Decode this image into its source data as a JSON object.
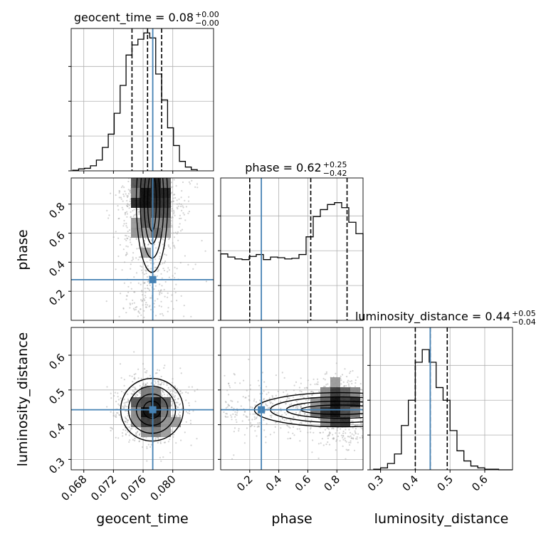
{
  "chart_data": {
    "type": "corner",
    "parameters": [
      "geocent_time",
      "phase",
      "luminosity_distance"
    ],
    "truths": {
      "geocent_time": 0.0773,
      "phase": 0.28,
      "luminosity_distance": 0.443
    },
    "colors": {
      "truth": "#4682b4",
      "hist": "#000000",
      "grid": "#b0b0b0",
      "points": "#9e9e9e"
    },
    "grid": true,
    "titles": [
      {
        "name": "geocent_time",
        "text": "geocent_time = 0.08",
        "plus": "+0.00",
        "minus": "−0.00"
      },
      {
        "name": "phase",
        "text": "phase = 0.62",
        "plus": "+0.25",
        "minus": "−0.42"
      },
      {
        "name": "luminosity_distance",
        "text": "luminosity_distance = 0.44",
        "plus": "+0.05",
        "minus": "−0.04"
      }
    ],
    "axes": {
      "geocent_time": {
        "label": "geocent_time",
        "range": [
          0.0663,
          0.0855
        ],
        "ticks": [
          0.068,
          0.072,
          0.076,
          0.08
        ],
        "tick_labels": [
          "0.068",
          "0.072",
          "0.076",
          "0.080"
        ]
      },
      "phase": {
        "label": "phase",
        "range": [
          0.0,
          0.98
        ],
        "ticks": [
          0.2,
          0.4,
          0.6,
          0.8
        ],
        "tick_labels": [
          "0.2",
          "0.4",
          "0.6",
          "0.8"
        ]
      },
      "luminosity_distance": {
        "label": "luminosity_distance",
        "range": [
          0.27,
          0.68
        ],
        "ticks": [
          0.3,
          0.4,
          0.5,
          0.6
        ],
        "tick_labels": [
          "0.3",
          "0.4",
          "0.5",
          "0.6"
        ]
      }
    },
    "marginals": {
      "geocent_time": {
        "bins": [
          0.0665,
          0.0673,
          0.0681,
          0.0689,
          0.0697,
          0.0705,
          0.0713,
          0.0721,
          0.0729,
          0.0737,
          0.0745,
          0.0753,
          0.0761,
          0.0769,
          0.0777,
          0.0785,
          0.0793,
          0.0801,
          0.0809,
          0.0817,
          0.0825,
          0.0833
        ],
        "counts": [
          1,
          3,
          4,
          8,
          17,
          37,
          58,
          91,
          135,
          183,
          199,
          208,
          218,
          210,
          153,
          112,
          68,
          40,
          15,
          6,
          2
        ],
        "quantiles": [
          0.0745,
          0.0766,
          0.0785
        ],
        "ylim": [
          0,
          225
        ],
        "ticks": [
          0,
          55,
          110,
          165
        ]
      },
      "phase": {
        "bins": [
          0.0,
          0.049,
          0.098,
          0.147,
          0.196,
          0.245,
          0.294,
          0.343,
          0.392,
          0.441,
          0.49,
          0.539,
          0.588,
          0.637,
          0.686,
          0.735,
          0.784,
          0.833,
          0.882,
          0.931,
          0.98
        ],
        "counts": [
          105,
          100,
          97,
          96,
          101,
          104,
          96,
          100,
          99,
          97,
          98,
          104,
          132,
          164,
          175,
          183,
          186,
          178,
          155,
          137
        ],
        "quantiles": [
          0.2,
          0.62,
          0.87
        ],
        "ylim": [
          0,
          225
        ],
        "ticks": [
          0,
          55,
          110,
          165
        ]
      },
      "luminosity_distance": {
        "bins": [
          0.28,
          0.3,
          0.32,
          0.34,
          0.36,
          0.38,
          0.4,
          0.42,
          0.44,
          0.46,
          0.48,
          0.5,
          0.52,
          0.54,
          0.56,
          0.58,
          0.6,
          0.62,
          0.64,
          0.66,
          0.68
        ],
        "counts": [
          1,
          3,
          10,
          25,
          70,
          110,
          170,
          190,
          170,
          130,
          110,
          62,
          30,
          14,
          6,
          3,
          1,
          1,
          0,
          0
        ],
        "quantiles": [
          0.4,
          0.443,
          0.492
        ],
        "ylim": [
          0,
          225
        ],
        "ticks": [
          0,
          55,
          110,
          165
        ]
      }
    }
  }
}
